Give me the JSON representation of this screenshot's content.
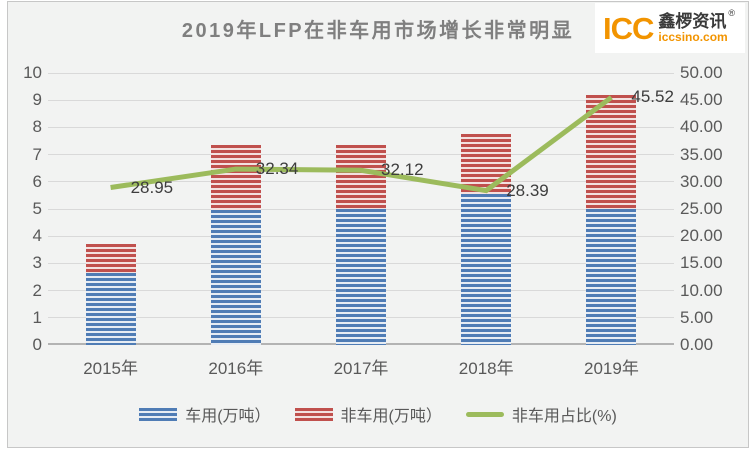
{
  "window": {
    "background": "#f2f3f2",
    "border": "#c7c7c7"
  },
  "header": {
    "title": "2019年LFP在非车用市场增长非常明显",
    "title_color": "#7f7f7f",
    "logo": {
      "abbr": "ICC",
      "name": "鑫椤资讯",
      "registered_mark": "®",
      "domain": "iccsino.com",
      "orange": "#f29400",
      "dark": "#3a3a3a"
    }
  },
  "chart_data": {
    "type": "bar",
    "subtype": "stacked-bars-with-line",
    "title": "2019年LFP在非车用市场增长非常明显",
    "categories": [
      "2015年",
      "2016年",
      "2017年",
      "2018年",
      "2019年"
    ],
    "series": [
      {
        "name": "车用(万吨）",
        "type": "bar",
        "stack": true,
        "axis": "left",
        "color": "#4f7cb5",
        "color_light": "#e6ecf4",
        "values": [
          2.65,
          4.98,
          4.99,
          5.55,
          5.0
        ]
      },
      {
        "name": "非车用(万吨）",
        "type": "bar",
        "stack": true,
        "axis": "left",
        "color": "#c0504d",
        "color_light": "#f3e1e0",
        "values": [
          1.08,
          2.38,
          2.36,
          2.2,
          4.18
        ]
      },
      {
        "name": "非车用占比(%)",
        "type": "line",
        "axis": "right",
        "color": "#9cbb5c",
        "values": [
          28.95,
          32.34,
          32.12,
          28.39,
          45.52
        ],
        "labels": [
          "28.95",
          "32.34",
          "32.12",
          "28.39",
          "45.52"
        ]
      }
    ],
    "left_axis": {
      "min": 0,
      "max": 10,
      "step": 1,
      "tick_labels": [
        "0",
        "1",
        "2",
        "3",
        "4",
        "5",
        "6",
        "7",
        "8",
        "9",
        "10"
      ]
    },
    "right_axis": {
      "min": 0,
      "max": 50,
      "step": 5,
      "tick_labels": [
        "0.00",
        "5.00",
        "10.00",
        "15.00",
        "20.00",
        "25.00",
        "30.00",
        "35.00",
        "40.00",
        "45.00",
        "50.00"
      ]
    },
    "grid": true,
    "gridline_color": "#d9d9d9",
    "axis_line_color": "#b3b3b3",
    "tick_text_color": "#595959",
    "data_label_color": "#3d3d3d",
    "legend_position": "bottom"
  },
  "legend": {
    "items": [
      {
        "key": "vehicle",
        "label": "车用(万吨）",
        "swatch": "blue-striped-bar"
      },
      {
        "key": "nonvehicle",
        "label": "非车用(万吨）",
        "swatch": "red-striped-bar"
      },
      {
        "key": "ratio-line",
        "label": "非车用占比(%)",
        "swatch": "green-line"
      }
    ]
  }
}
